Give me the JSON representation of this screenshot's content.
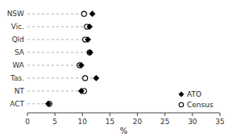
{
  "chart_data": {
    "type": "dot",
    "orientation": "horizontal",
    "categories": [
      "NSW",
      "Vic.",
      "Qld",
      "SA",
      "WA",
      "Tas.",
      "NT",
      "ACT"
    ],
    "series": [
      {
        "name": "ATO",
        "color": "#000000",
        "marker": "diamond",
        "values": [
          11.8,
          11.3,
          11.0,
          11.4,
          9.8,
          12.5,
          9.8,
          3.8
        ]
      },
      {
        "name": "Census",
        "color": "#000000",
        "marker": "circle",
        "values": [
          10.3,
          10.8,
          10.5,
          11.3,
          9.5,
          10.5,
          10.3,
          4.0
        ]
      }
    ],
    "xlabel": "%",
    "xlim": [
      0,
      35
    ],
    "xticks": [
      0,
      5,
      10,
      15,
      20,
      25,
      30,
      35
    ],
    "legend": "lower right"
  }
}
